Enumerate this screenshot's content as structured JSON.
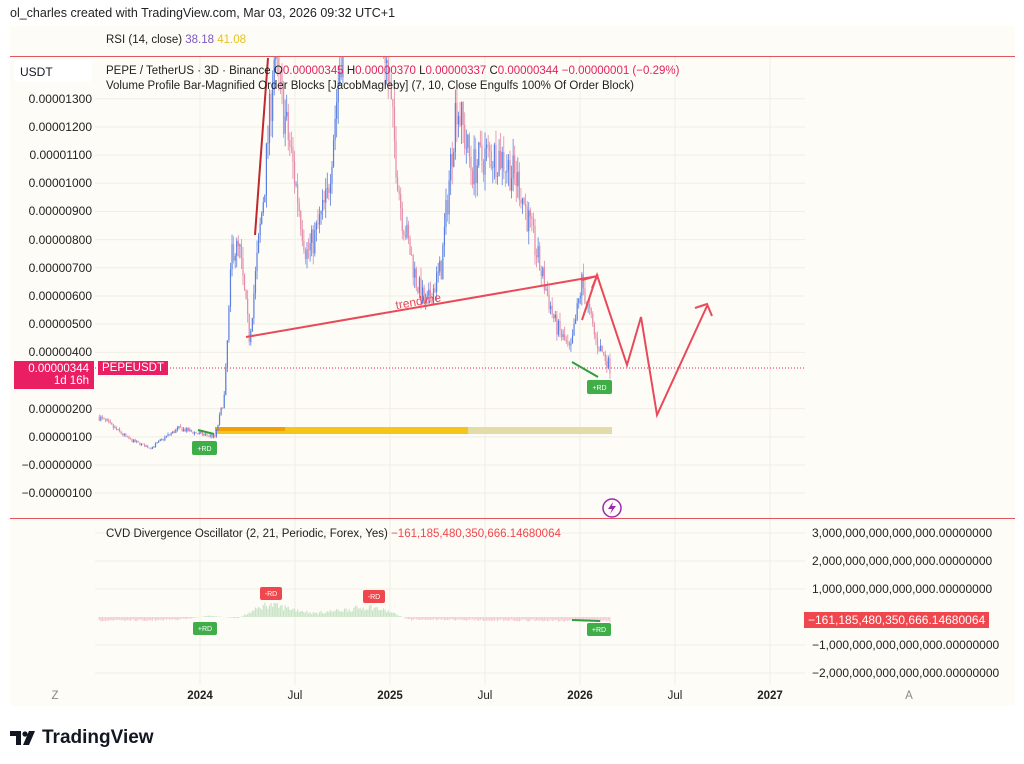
{
  "credit": "ol_charles created with TradingView.com, Mar 03, 2026 09:32 UTC+1",
  "rsi": {
    "label": "RSI (14, close)",
    "value1": "38.18",
    "value2": "41.08",
    "color1": "#7e57c2",
    "color2": "#f5c518"
  },
  "header": {
    "symbol": "PEPE / TetherUS · 3D · Binance",
    "o_label": "O",
    "o": "0.00000345",
    "h_label": "H",
    "h": "0.00000370",
    "l_label": "L",
    "l": "0.00000337",
    "c_label": "C",
    "c": "0.00000344",
    "change": "−0.00000001 (−0.29%)",
    "indicator": "Volume Profile Bar-Magnified Order Blocks [JacobMagleby] (7, 10, Close Engulfs 100% Of Order Block)"
  },
  "currency": "USDT",
  "price_axis": [
    "0.00001300",
    "0.00001200",
    "0.00001100",
    "0.00001000",
    "0.00000900",
    "0.00000800",
    "0.00000700",
    "0.00000600",
    "0.00000500",
    "0.00000400",
    "0.00000200",
    "0.00000100",
    "−0.00000000",
    "−0.00000100"
  ],
  "current_price": {
    "value": "0.00000344",
    "countdown": "1d 16h",
    "ticker": "PEPEUSDT"
  },
  "drawings": {
    "trendline_label": "trendline",
    "badges": [
      "+RD",
      "+RD"
    ]
  },
  "cvd": {
    "label": "CVD Divergence Oscillator (2, 21, Periodic, Forex, Yes)",
    "value": "−161,185,480,350,666.14680064",
    "axis": [
      "3,000,000,000,000,000.00000000",
      "2,000,000,000,000,000.00000000",
      "1,000,000,000,000,000.00000000",
      "−1,000,000,000,000,000.00000000",
      "−2,000,000,000,000,000.00000000"
    ],
    "badges": [
      "+RD",
      "-RD",
      "-RD",
      "+RD"
    ]
  },
  "time_axis": [
    "2024",
    "Jul",
    "2025",
    "Jul",
    "2026",
    "Jul",
    "2027"
  ],
  "corner": {
    "left": "Z",
    "right": "A"
  },
  "logo": "TradingView",
  "chart_data": {
    "type": "candlestick",
    "symbol": "PEPEUSDT",
    "interval": "3D",
    "unit": "1e-8 USDT",
    "anchors_t": [
      2023.47,
      2023.63,
      2023.74,
      2023.82,
      2023.89,
      2024.0,
      2024.08,
      2024.13,
      2024.17,
      2024.21,
      2024.26,
      2024.34,
      2024.39,
      2024.48,
      2024.56,
      2024.6,
      2024.67,
      2024.79,
      2024.9,
      2025.0,
      2025.06,
      2025.14,
      2025.19,
      2025.27,
      2025.35,
      2025.43,
      2025.5,
      2025.58,
      2025.68,
      2025.79,
      2025.87,
      2025.95,
      2026.01,
      2026.08,
      2026.16
    ],
    "anchors_price": [
      170,
      90,
      60,
      100,
      130,
      110,
      100,
      250,
      780,
      750,
      450,
      1000,
      1450,
      1100,
      750,
      800,
      950,
      1800,
      2000,
      1300,
      900,
      650,
      560,
      700,
      1300,
      1050,
      1100,
      1100,
      1000,
      700,
      500,
      400,
      650,
      450,
      344
    ],
    "cvd_t": [
      2023.47,
      2023.9,
      2024.05,
      2024.2,
      2024.35,
      2024.5,
      2024.6,
      2024.9,
      2025.0,
      2025.1,
      2026.16
    ],
    "cvd_e15": [
      -0.15,
      -0.1,
      0.05,
      -0.05,
      0.5,
      0.3,
      0.15,
      0.4,
      0.2,
      -0.1,
      -0.16
    ]
  }
}
